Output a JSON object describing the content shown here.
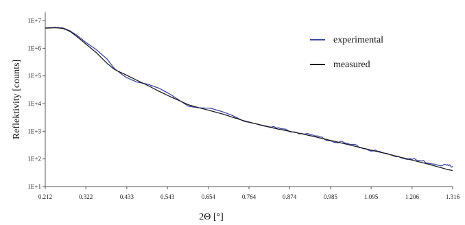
{
  "chart_data": {
    "type": "line",
    "title": "",
    "xlabel": "2Θ [°]",
    "ylabel": "Reflektivity [counts]",
    "y_scale": "log",
    "xlim": [
      0.212,
      1.316
    ],
    "ylim": [
      10,
      10000000
    ],
    "x_ticks": [
      "0.212",
      "0.322",
      "0.433",
      "0.543",
      "0.654",
      "0.764",
      "0.874",
      "0.985",
      "1.095",
      "1.206",
      "1.316"
    ],
    "y_ticks": [
      "1E+1",
      "1E+2",
      "1E+3",
      "1E+4",
      "1E+5",
      "1E+6",
      "1E+7"
    ],
    "y_tick_values": [
      10,
      100,
      1000,
      10000,
      100000,
      1000000,
      10000000
    ],
    "grid": false,
    "legend_position": "top-right",
    "series": [
      {
        "name": "experimental",
        "color": "#3c46a0",
        "noisy_above_x": 0.82,
        "points": [
          [
            0.212,
            5500000
          ],
          [
            0.24,
            5700000
          ],
          [
            0.26,
            5400000
          ],
          [
            0.28,
            4200000
          ],
          [
            0.3,
            2800000
          ],
          [
            0.32,
            1700000
          ],
          [
            0.35,
            900000
          ],
          [
            0.38,
            400000
          ],
          [
            0.4,
            180000
          ],
          [
            0.43,
            90000
          ],
          [
            0.46,
            60000
          ],
          [
            0.49,
            50000
          ],
          [
            0.52,
            36000
          ],
          [
            0.55,
            22000
          ],
          [
            0.58,
            12000
          ],
          [
            0.6,
            8000
          ],
          [
            0.63,
            7000
          ],
          [
            0.66,
            6800
          ],
          [
            0.69,
            5200
          ],
          [
            0.72,
            3700
          ],
          [
            0.75,
            2300
          ],
          [
            0.78,
            1900
          ],
          [
            0.8,
            1650
          ],
          [
            0.85,
            1200
          ],
          [
            0.9,
            880
          ],
          [
            0.95,
            620
          ],
          [
            1.0,
            430
          ],
          [
            1.05,
            300
          ],
          [
            1.1,
            200
          ],
          [
            1.15,
            140
          ],
          [
            1.2,
            100
          ],
          [
            1.25,
            75
          ],
          [
            1.3,
            58
          ],
          [
            1.316,
            55
          ]
        ]
      },
      {
        "name": "measured",
        "color": "#1a1a1a",
        "noisy_above_x": null,
        "points": [
          [
            0.212,
            5300000
          ],
          [
            0.24,
            5500000
          ],
          [
            0.26,
            5200000
          ],
          [
            0.28,
            4000000
          ],
          [
            0.3,
            2500000
          ],
          [
            0.32,
            1500000
          ],
          [
            0.35,
            700000
          ],
          [
            0.38,
            280000
          ],
          [
            0.4,
            170000
          ],
          [
            0.43,
            110000
          ],
          [
            0.46,
            70000
          ],
          [
            0.49,
            45000
          ],
          [
            0.52,
            28000
          ],
          [
            0.55,
            18000
          ],
          [
            0.58,
            12000
          ],
          [
            0.6,
            9000
          ],
          [
            0.63,
            7000
          ],
          [
            0.66,
            5500
          ],
          [
            0.69,
            4300
          ],
          [
            0.72,
            3200
          ],
          [
            0.75,
            2400
          ],
          [
            0.78,
            1900
          ],
          [
            0.8,
            1600
          ],
          [
            0.85,
            1150
          ],
          [
            0.9,
            850
          ],
          [
            0.95,
            600
          ],
          [
            1.0,
            420
          ],
          [
            1.05,
            290
          ],
          [
            1.1,
            200
          ],
          [
            1.15,
            140
          ],
          [
            1.2,
            95
          ],
          [
            1.25,
            65
          ],
          [
            1.3,
            42
          ],
          [
            1.316,
            38
          ]
        ]
      }
    ]
  }
}
